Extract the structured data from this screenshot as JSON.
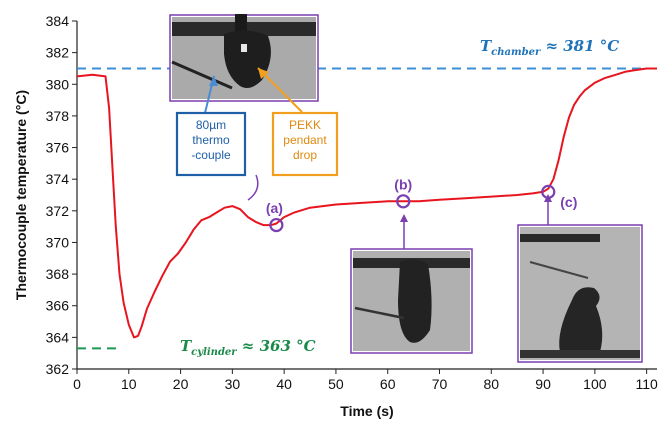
{
  "chart_data": {
    "type": "line",
    "xlabel": "Time (s)",
    "ylabel": "Thermocouple temperature (°C)",
    "xlim": [
      0,
      112
    ],
    "ylim": [
      362,
      384
    ],
    "xticks": [
      0,
      10,
      20,
      30,
      40,
      50,
      60,
      70,
      80,
      90,
      100,
      110
    ],
    "yticks": [
      362,
      364,
      366,
      368,
      370,
      372,
      374,
      376,
      378,
      380,
      382,
      384
    ],
    "series": [
      {
        "color": "#e8141e",
        "x": [
          0,
          3,
          5.5,
          6.2,
          6.8,
          7.5,
          8.2,
          9,
          10,
          11,
          11.8,
          12.5,
          13.5,
          15,
          16.5,
          18,
          19.5,
          21,
          22.5,
          24,
          25.5,
          27,
          28.5,
          30,
          31.5,
          33,
          34.5,
          36,
          37.5,
          38.5,
          40,
          42,
          45,
          50,
          55,
          60,
          63,
          66,
          70,
          75,
          80,
          85,
          88,
          90,
          91,
          92,
          93,
          94,
          95,
          96,
          97,
          98,
          100,
          102,
          104,
          106,
          108,
          110,
          112
        ],
        "y": [
          380.5,
          380.6,
          380.5,
          378.5,
          375,
          371,
          368,
          366.2,
          364.8,
          364.0,
          364.1,
          364.7,
          365.8,
          366.9,
          367.9,
          368.8,
          369.3,
          370.0,
          370.8,
          371.4,
          371.6,
          371.9,
          372.2,
          372.3,
          372.1,
          371.6,
          371.3,
          371.1,
          371.1,
          371.2,
          371.6,
          371.9,
          372.2,
          372.4,
          372.5,
          372.6,
          372.6,
          372.6,
          372.7,
          372.8,
          372.9,
          373.0,
          373.1,
          373.2,
          373.4,
          374.0,
          375.2,
          376.7,
          377.9,
          378.7,
          379.2,
          379.6,
          380.1,
          380.4,
          380.6,
          380.8,
          380.9,
          381.0,
          381.0
        ]
      }
    ],
    "reference_lines": [
      {
        "y": 381,
        "x_range": [
          0,
          112
        ],
        "color": "#3c8fd4",
        "label": "T_chamber ≈ 381 °C"
      },
      {
        "y": 363.3,
        "x_range": [
          0,
          8
        ],
        "color": "#1a9a56",
        "label": "T_cylinder ≈ 363 °C"
      }
    ],
    "annotations": [
      {
        "letter": "(a)",
        "x": 38.5,
        "y": 371.1,
        "callout_direction": "up"
      },
      {
        "letter": "(b)",
        "x": 63,
        "y": 372.6,
        "callout_direction": "down"
      },
      {
        "letter": "(c)",
        "x": 91,
        "y": 373.2,
        "callout_direction": "down"
      }
    ],
    "inset_labels": {
      "thermocouple": "80µm thermo -couple",
      "pendant_drop": "PEKK pendant drop"
    },
    "colors": {
      "annotation": "#7a3fb0",
      "thermocouple_box": "#1f5fa8",
      "drop_box": "#f0a01e"
    }
  }
}
